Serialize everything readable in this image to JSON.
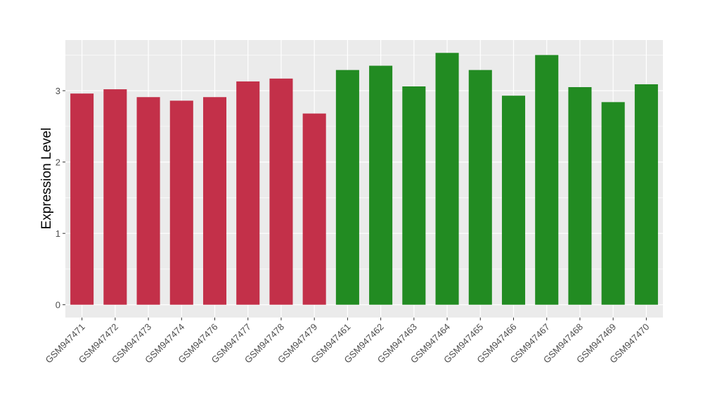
{
  "chart_data": {
    "type": "bar",
    "title": "",
    "xlabel": "",
    "ylabel": "Expression Level",
    "ylim": [
      -0.18,
      3.71
    ],
    "yticks": [
      0,
      1,
      2,
      3
    ],
    "grid": true,
    "categories": [
      "GSM947471",
      "GSM947472",
      "GSM947473",
      "GSM947474",
      "GSM947476",
      "GSM947477",
      "GSM947478",
      "GSM947479",
      "GSM947461",
      "GSM947462",
      "GSM947463",
      "GSM947464",
      "GSM947465",
      "GSM947466",
      "GSM947467",
      "GSM947468",
      "GSM947469",
      "GSM947470"
    ],
    "values": [
      2.96,
      3.02,
      2.91,
      2.86,
      2.91,
      3.13,
      3.17,
      2.68,
      3.29,
      3.35,
      3.06,
      3.53,
      3.29,
      2.93,
      3.5,
      3.05,
      2.84,
      3.09
    ],
    "bar_colors": [
      "#c33049",
      "#c33049",
      "#c33049",
      "#c33049",
      "#c33049",
      "#c33049",
      "#c33049",
      "#c33049",
      "#228b22",
      "#228b22",
      "#228b22",
      "#228b22",
      "#228b22",
      "#228b22",
      "#228b22",
      "#228b22",
      "#228b22",
      "#228b22"
    ],
    "panel_background": "#ebebeb"
  }
}
